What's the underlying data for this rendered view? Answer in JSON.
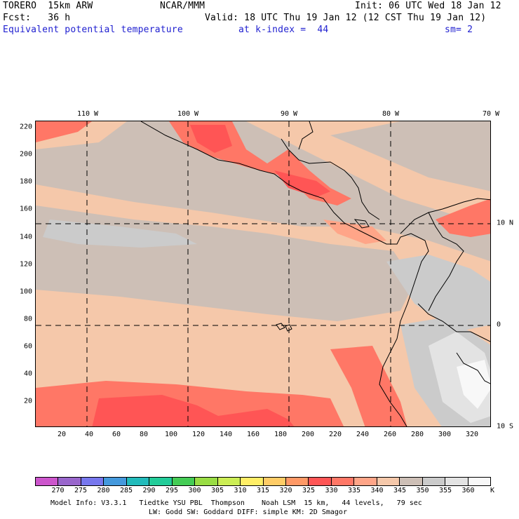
{
  "header": {
    "model": "TORERO  15km ARW",
    "center": "NCAR/MMM",
    "init": "Init: 06 UTC Wed 18 Jan 12",
    "fcst": "Fcst:   36 h",
    "valid": "Valid: 18 UTC Thu 19 Jan 12 (12 CST Thu 19 Jan 12)",
    "field": "Equivalent potential temperature",
    "level": "at k-index =  44",
    "smooth": "sm= 2"
  },
  "axes": {
    "lon_labels": [
      "110 W",
      "100 W",
      "90 W",
      "80 W",
      "70 W"
    ],
    "lat_labels": [
      "10 N",
      "0",
      "10 S"
    ],
    "y_ticks": [
      "220",
      "200",
      "180",
      "160",
      "140",
      "120",
      "100",
      "80",
      "60",
      "40",
      "20"
    ],
    "x_ticks": [
      "20",
      "40",
      "60",
      "80",
      "100",
      "120",
      "140",
      "160",
      "180",
      "200",
      "220",
      "240",
      "260",
      "280",
      "300",
      "320"
    ]
  },
  "legend": {
    "units": "K",
    "labels": [
      "270",
      "275",
      "280",
      "285",
      "290",
      "295",
      "300",
      "305",
      "310",
      "315",
      "320",
      "325",
      "330",
      "335",
      "340",
      "345",
      "350",
      "355",
      "360"
    ],
    "colors": [
      "#cc55cc",
      "#9966cc",
      "#7777ee",
      "#4499dd",
      "#22bbbb",
      "#22cc99",
      "#44cc55",
      "#99dd44",
      "#ccee55",
      "#ffee66",
      "#ffcc66",
      "#ff9966",
      "#ff5555",
      "#ff7766",
      "#ffa588",
      "#f5c8aa",
      "#cdbfb6",
      "#cbcbcb",
      "#e3e3e3",
      "#f8f8f8"
    ]
  },
  "footer": {
    "line1": "Model Info: V3.3.1   Tiedtke YSU PBL  Thompson    Noah LSM  15 km,   44 levels,   79 sec",
    "line2": "LW: Godd SW: Goddard DIFF: simple KM: 2D Smagor"
  }
}
